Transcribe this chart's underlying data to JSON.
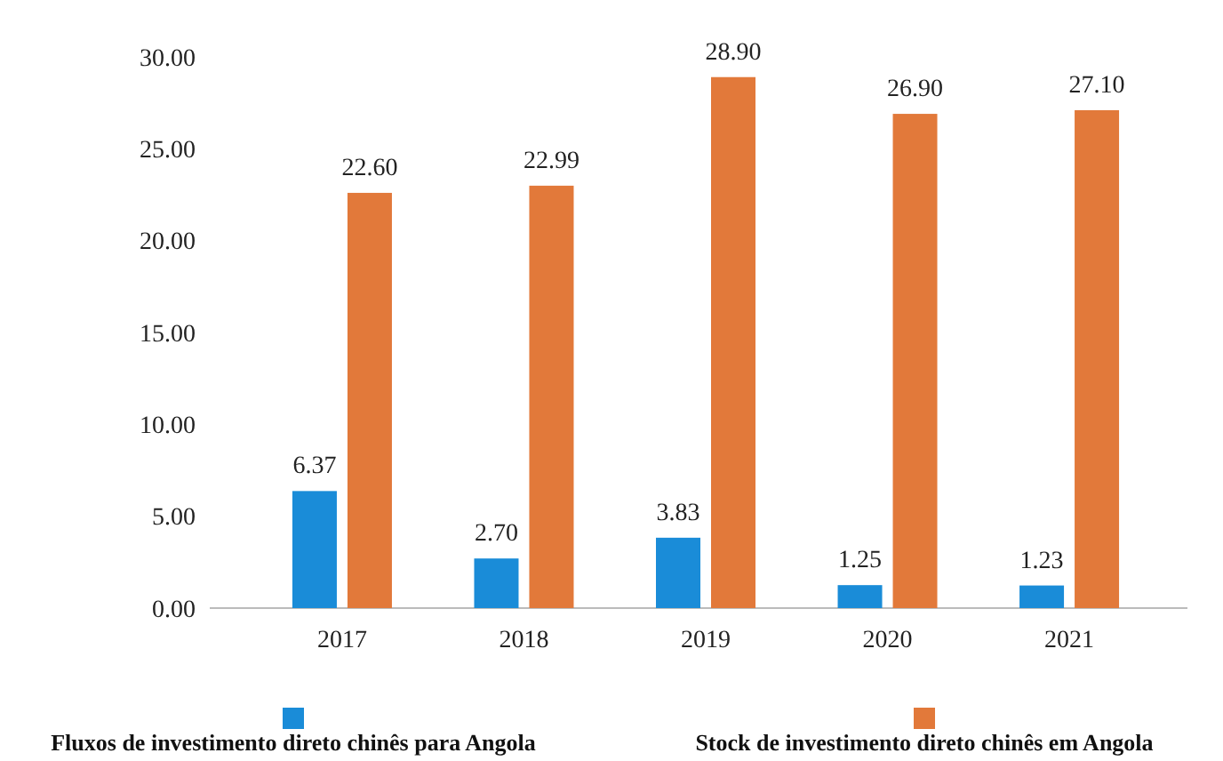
{
  "chart_data": {
    "type": "bar",
    "categories": [
      "2017",
      "2018",
      "2019",
      "2020",
      "2021"
    ],
    "series": [
      {
        "name": "Fluxos de investimento direto chinês para Angola",
        "color": "#1a8cd8",
        "values": [
          6.37,
          2.7,
          3.83,
          1.25,
          1.23
        ],
        "value_labels": [
          "6.37",
          "2.70",
          "3.83",
          "1.25",
          "1.23"
        ]
      },
      {
        "name": "Stock de investimento direto chinês em Angola",
        "color": "#e2793a",
        "values": [
          22.6,
          22.99,
          28.9,
          26.9,
          27.1
        ],
        "value_labels": [
          "22.60",
          "22.99",
          "28.90",
          "26.90",
          "27.10"
        ]
      }
    ],
    "ylim": [
      0,
      30
    ],
    "yticks": [
      {
        "value": 0,
        "label": "0.00"
      },
      {
        "value": 5,
        "label": "5.00"
      },
      {
        "value": 10,
        "label": "10.00"
      },
      {
        "value": 15,
        "label": "15.00"
      },
      {
        "value": 20,
        "label": "20.00"
      },
      {
        "value": 25,
        "label": "25.00"
      },
      {
        "value": 30,
        "label": "30.00"
      }
    ],
    "grid": false,
    "legend": "bottom"
  }
}
